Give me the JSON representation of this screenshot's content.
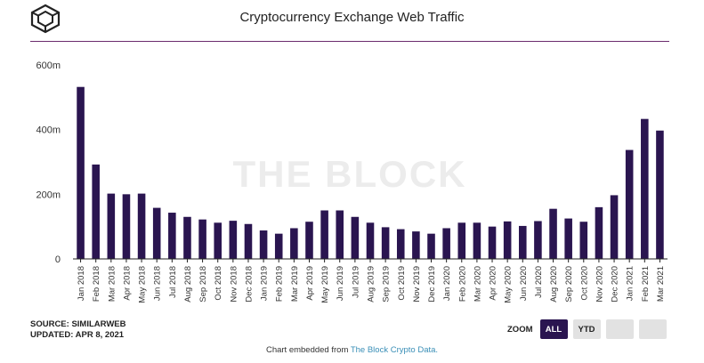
{
  "header": {
    "title": "Cryptocurrency Exchange Web Traffic",
    "logo_icon": "the-block-cube-icon"
  },
  "watermark": "THE BLOCK",
  "footer": {
    "source": "SOURCE: SIMILARWEB",
    "updated": "UPDATED: APR 8, 2021",
    "embed_text": "Chart embedded from ",
    "embed_link": "The Block Crypto Data."
  },
  "zoom": {
    "label": "ZOOM",
    "buttons": [
      {
        "label": "ALL",
        "active": true
      },
      {
        "label": "YTD",
        "active": false
      },
      {
        "label": "",
        "active": false
      },
      {
        "label": "",
        "active": false
      }
    ]
  },
  "colors": {
    "bar": "#2a1550",
    "accent_rule": "#6b2a6d",
    "link": "#3a8fb7"
  },
  "chart_data": {
    "type": "bar",
    "title": "Cryptocurrency Exchange Web Traffic",
    "xlabel": "",
    "ylabel": "",
    "ylim": [
      0,
      600000000
    ],
    "yticks": [
      0,
      200000000,
      400000000,
      600000000
    ],
    "ytick_labels": [
      "0",
      "200m",
      "400m",
      "600m"
    ],
    "grid": false,
    "categories": [
      "Jan 2018",
      "Feb 2018",
      "Mar 2018",
      "Apr 2018",
      "May 2018",
      "Jun 2018",
      "Jul 2018",
      "Aug 2018",
      "Sep 2018",
      "Oct 2018",
      "Nov 2018",
      "Dec 2018",
      "Jan 2019",
      "Feb 2019",
      "Mar 2019",
      "Apr 2019",
      "May 2019",
      "Jun 2019",
      "Jul 2019",
      "Aug 2019",
      "Sep 2019",
      "Oct 2019",
      "Nov 2019",
      "Dec 2019",
      "Jan 2020",
      "Feb 2020",
      "Mar 2020",
      "Apr 2020",
      "May 2020",
      "Jun 2020",
      "Jul 2020",
      "Aug 2020",
      "Sep 2020",
      "Oct 2020",
      "Nov 2020",
      "Dec 2020",
      "Jan 2021",
      "Feb 2021",
      "Mar 2021"
    ],
    "values": [
      532000000,
      292000000,
      202000000,
      200000000,
      202000000,
      158000000,
      143000000,
      130000000,
      122000000,
      112000000,
      118000000,
      108000000,
      88000000,
      78000000,
      95000000,
      115000000,
      150000000,
      150000000,
      130000000,
      112000000,
      98000000,
      92000000,
      85000000,
      78000000,
      95000000,
      112000000,
      112000000,
      100000000,
      116000000,
      102000000,
      117000000,
      155000000,
      125000000,
      115000000,
      160000000,
      197000000,
      337000000,
      433000000,
      397000000
    ]
  }
}
